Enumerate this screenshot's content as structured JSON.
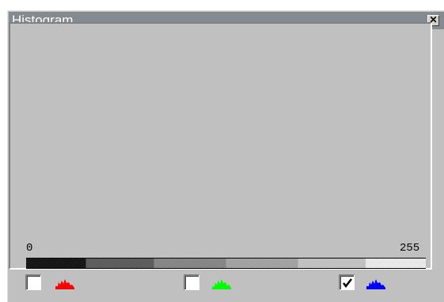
{
  "window": {
    "title": "Histogram"
  },
  "icons": {
    "close": "close-icon",
    "check": "check-icon"
  },
  "chart_data": {
    "type": "bar",
    "x_range": [
      0,
      255
    ],
    "x_labels": [
      "0",
      "255"
    ],
    "y_range": [
      0,
      100
    ],
    "series": [
      {
        "color": "#0000ff",
        "values": [
          0,
          0,
          0,
          0,
          0,
          0,
          0,
          0,
          0,
          0,
          0,
          0,
          0,
          0,
          0,
          0,
          0,
          0,
          0,
          0,
          0,
          0,
          0,
          0,
          0,
          0,
          0,
          0,
          0,
          0,
          0,
          0,
          0,
          0,
          0,
          0,
          0,
          0,
          0,
          0,
          0,
          0,
          0,
          0,
          0,
          0,
          0,
          0,
          0,
          0,
          0,
          0,
          0,
          0,
          0,
          0,
          0,
          0,
          0,
          0,
          0,
          0,
          0,
          0,
          0,
          0,
          0,
          0,
          0,
          0,
          0,
          0,
          0,
          0,
          0,
          0,
          0,
          0,
          0,
          0,
          0,
          0,
          0,
          0,
          0,
          0,
          0,
          0,
          0,
          0,
          0,
          0,
          0,
          0,
          0,
          0,
          0,
          0,
          0,
          0,
          0,
          0,
          0,
          0,
          0,
          0,
          0,
          0,
          0,
          0,
          0,
          0,
          0,
          0,
          0,
          0,
          0,
          0,
          0,
          0,
          0,
          0,
          0,
          0,
          0,
          0,
          0,
          0,
          0,
          0,
          0,
          0,
          0,
          0,
          0,
          0,
          0,
          0,
          0,
          0,
          0,
          0,
          0,
          0,
          0,
          0,
          0,
          0,
          0,
          0,
          0,
          0,
          0,
          0,
          0,
          0,
          0,
          0,
          0,
          0,
          0,
          0,
          0,
          0,
          0,
          0,
          0,
          0,
          0,
          0,
          0,
          0,
          0,
          0,
          0,
          0,
          0,
          0,
          0,
          0,
          0,
          0,
          0,
          0,
          0,
          0,
          0,
          0,
          0,
          0,
          0,
          0,
          0,
          0,
          0,
          0,
          0,
          0,
          0,
          0,
          0,
          0,
          0,
          0,
          0,
          0,
          0,
          0,
          0,
          0,
          0,
          0,
          0,
          0,
          0,
          0,
          0,
          0,
          0,
          0,
          0,
          0,
          0,
          0,
          0,
          0,
          0,
          0,
          0,
          0,
          0,
          0,
          0,
          0,
          0,
          0,
          0,
          0,
          0,
          0,
          0,
          0,
          0,
          0,
          0,
          0,
          0,
          0,
          0,
          0,
          0,
          0,
          0,
          0,
          0,
          0,
          0,
          0,
          0,
          0,
          0
        ]
      }
    ]
  },
  "channels": [
    {
      "name": "red",
      "color": "#ff0000",
      "checked": false
    },
    {
      "name": "green",
      "color": "#00ff00",
      "checked": false
    },
    {
      "name": "blue",
      "color": "#0000ff",
      "checked": true
    }
  ]
}
